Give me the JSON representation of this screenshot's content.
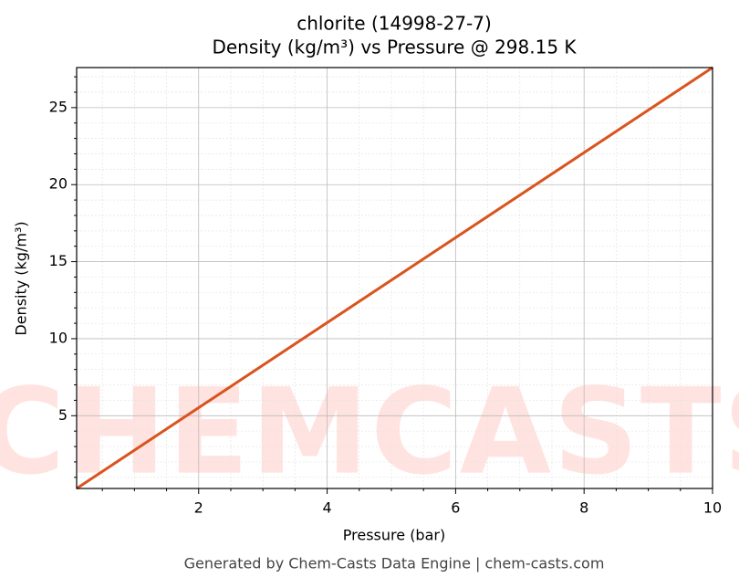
{
  "chart_data": {
    "type": "line",
    "title": "chlorite (14998-27-7)",
    "subtitle": "Density (kg/m³) vs Pressure @ 298.15 K",
    "xlabel": "Pressure (bar)",
    "ylabel": "Density (kg/m³)",
    "watermark": "CHEMCASTS",
    "footer": "Generated by Chem-Casts Data Engine | chem-casts.com",
    "x": [
      0.1,
      2,
      4,
      6,
      8,
      10
    ],
    "series": [
      {
        "name": "Density",
        "color": "#d9541e",
        "values": [
          0.276,
          5.52,
          11.04,
          16.56,
          22.08,
          27.6
        ]
      }
    ],
    "xlim": [
      0.1,
      10
    ],
    "ylim": [
      0.276,
      27.6
    ],
    "xticks": [
      2,
      4,
      6,
      8,
      10
    ],
    "yticks": [
      5,
      10,
      15,
      20,
      25
    ],
    "xminorticks": [
      0.5,
      1,
      1.5,
      2.5,
      3,
      3.5,
      4.5,
      5,
      5.5,
      6.5,
      7,
      7.5,
      8.5,
      9,
      9.5
    ],
    "yminorticks": [
      1,
      2,
      3,
      4,
      6,
      7,
      8,
      9,
      11,
      12,
      13,
      14,
      16,
      17,
      18,
      19,
      21,
      22,
      23,
      24,
      26,
      27
    ],
    "grid": true
  }
}
